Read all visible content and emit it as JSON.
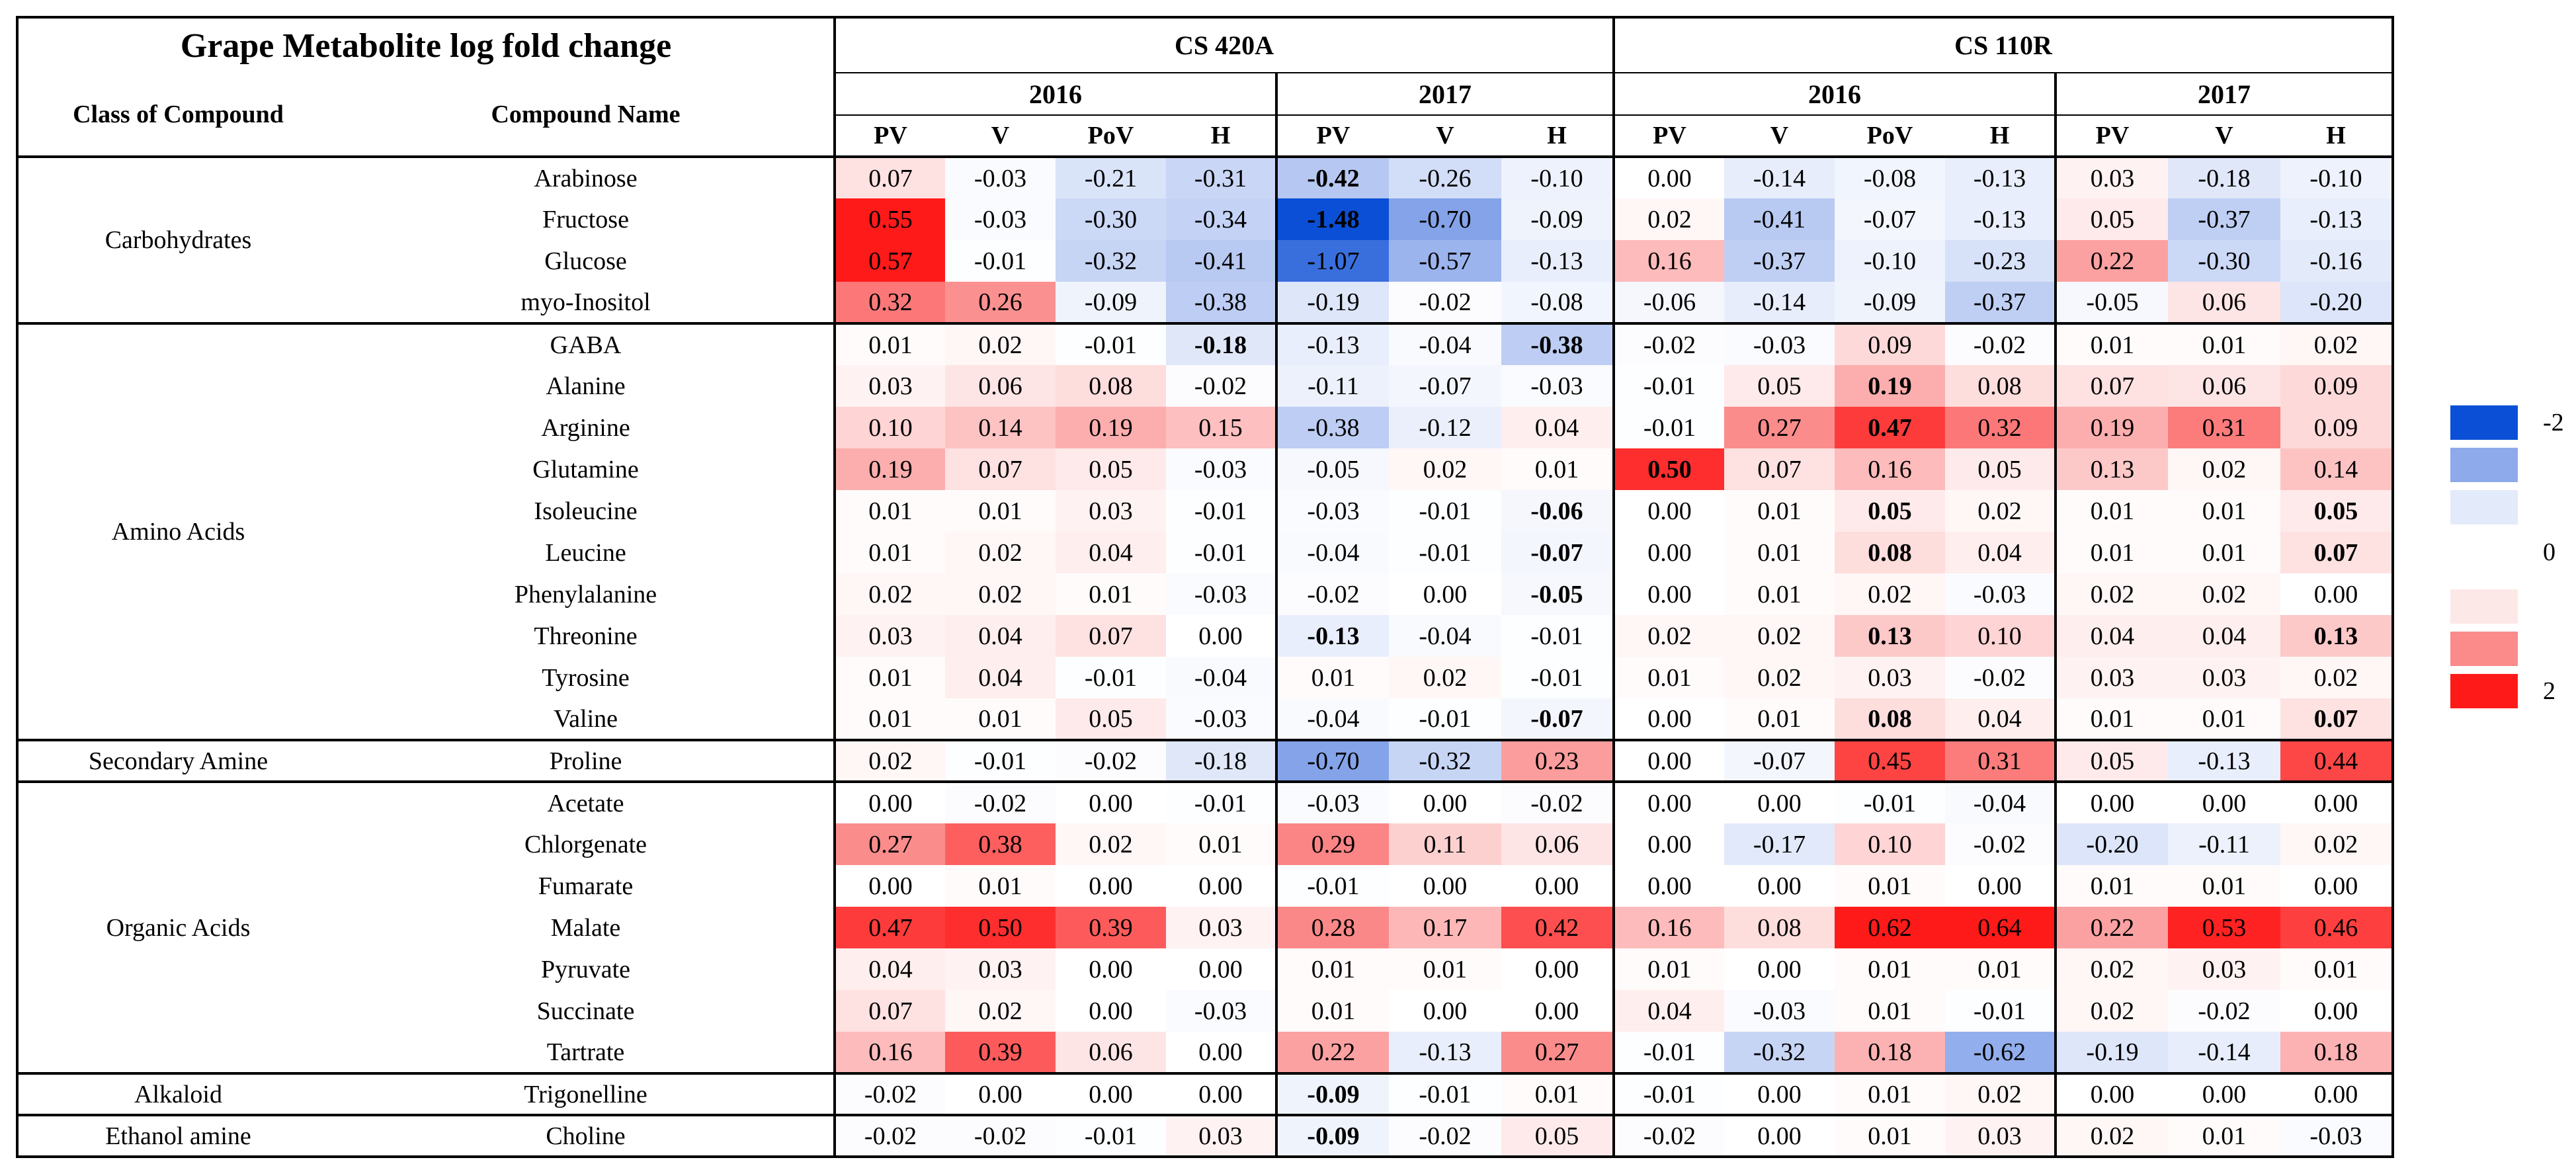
{
  "title": "Grape Metabolite log fold change",
  "headers": {
    "class_label": "Class of Compound",
    "compound_label": "Compound Name",
    "rootstocks": [
      "CS 420A",
      "CS 110R"
    ],
    "years": [
      "2016",
      "2017",
      "2016",
      "2017"
    ],
    "stages": [
      "PV",
      "V",
      "PoV",
      "H",
      "PV",
      "V",
      "H",
      "PV",
      "V",
      "PoV",
      "H",
      "PV",
      "V",
      "H"
    ]
  },
  "colors": {
    "neg_strong": "#0a4fd6",
    "neg_mid": "#8eaaeb",
    "neg_light": "#e3eaf9",
    "pos_light": "#fde8e8",
    "pos_mid": "#fb8a8a",
    "pos_strong": "#ff1a1a"
  },
  "groups": [
    {
      "class": "Carbohydrates",
      "rows": [
        {
          "name": "Arabinose",
          "values": [
            "0.07",
            "-0.03",
            "-0.21",
            "-0.31",
            "-0.42",
            "-0.26",
            "-0.10",
            "0.00",
            "-0.14",
            "-0.08",
            "-0.13",
            "0.03",
            "-0.18",
            "-0.10"
          ],
          "bold": [
            4
          ]
        },
        {
          "name": "Fructose",
          "values": [
            "0.55",
            "-0.03",
            "-0.30",
            "-0.34",
            "-1.48",
            "-0.70",
            "-0.09",
            "0.02",
            "-0.41",
            "-0.07",
            "-0.13",
            "0.05",
            "-0.37",
            "-0.13"
          ],
          "bold": [
            4
          ]
        },
        {
          "name": "Glucose",
          "values": [
            "0.57",
            "-0.01",
            "-0.32",
            "-0.41",
            "-1.07",
            "-0.57",
            "-0.13",
            "0.16",
            "-0.37",
            "-0.10",
            "-0.23",
            "0.22",
            "-0.30",
            "-0.16"
          ],
          "bold": []
        },
        {
          "name": "myo-Inositol",
          "values": [
            "0.32",
            "0.26",
            "-0.09",
            "-0.38",
            "-0.19",
            "-0.02",
            "-0.08",
            "-0.06",
            "-0.14",
            "-0.09",
            "-0.37",
            "-0.05",
            "0.06",
            "-0.20"
          ],
          "bold": []
        }
      ]
    },
    {
      "class": "Amino Acids",
      "rows": [
        {
          "name": "GABA",
          "values": [
            "0.01",
            "0.02",
            "-0.01",
            "-0.18",
            "-0.13",
            "-0.04",
            "-0.38",
            "-0.02",
            "-0.03",
            "0.09",
            "-0.02",
            "0.01",
            "0.01",
            "0.02"
          ],
          "bold": [
            3,
            6
          ]
        },
        {
          "name": "Alanine",
          "values": [
            "0.03",
            "0.06",
            "0.08",
            "-0.02",
            "-0.11",
            "-0.07",
            "-0.03",
            "-0.01",
            "0.05",
            "0.19",
            "0.08",
            "0.07",
            "0.06",
            "0.09"
          ],
          "bold": [
            9
          ]
        },
        {
          "name": "Arginine",
          "values": [
            "0.10",
            "0.14",
            "0.19",
            "0.15",
            "-0.38",
            "-0.12",
            "0.04",
            "-0.01",
            "0.27",
            "0.47",
            "0.32",
            "0.19",
            "0.31",
            "0.09"
          ],
          "bold": [
            9
          ]
        },
        {
          "name": "Glutamine",
          "values": [
            "0.19",
            "0.07",
            "0.05",
            "-0.03",
            "-0.05",
            "0.02",
            "0.01",
            "0.50",
            "0.07",
            "0.16",
            "0.05",
            "0.13",
            "0.02",
            "0.14"
          ],
          "bold": [
            7
          ]
        },
        {
          "name": "Isoleucine",
          "values": [
            "0.01",
            "0.01",
            "0.03",
            "-0.01",
            "-0.03",
            "-0.01",
            "-0.06",
            "0.00",
            "0.01",
            "0.05",
            "0.02",
            "0.01",
            "0.01",
            "0.05"
          ],
          "bold": [
            6,
            9,
            13
          ]
        },
        {
          "name": "Leucine",
          "values": [
            "0.01",
            "0.02",
            "0.04",
            "-0.01",
            "-0.04",
            "-0.01",
            "-0.07",
            "0.00",
            "0.01",
            "0.08",
            "0.04",
            "0.01",
            "0.01",
            "0.07"
          ],
          "bold": [
            6,
            9,
            13
          ]
        },
        {
          "name": "Phenylalanine",
          "values": [
            "0.02",
            "0.02",
            "0.01",
            "-0.03",
            "-0.02",
            "0.00",
            "-0.05",
            "0.00",
            "0.01",
            "0.02",
            "-0.03",
            "0.02",
            "0.02",
            "0.00"
          ],
          "bold": [
            6
          ]
        },
        {
          "name": "Threonine",
          "values": [
            "0.03",
            "0.04",
            "0.07",
            "0.00",
            "-0.13",
            "-0.04",
            "-0.01",
            "0.02",
            "0.02",
            "0.13",
            "0.10",
            "0.04",
            "0.04",
            "0.13"
          ],
          "bold": [
            4,
            9,
            13
          ]
        },
        {
          "name": "Tyrosine",
          "values": [
            "0.01",
            "0.04",
            "-0.01",
            "-0.04",
            "0.01",
            "0.02",
            "-0.01",
            "0.01",
            "0.02",
            "0.03",
            "-0.02",
            "0.03",
            "0.03",
            "0.02"
          ],
          "bold": []
        },
        {
          "name": "Valine",
          "values": [
            "0.01",
            "0.01",
            "0.05",
            "-0.03",
            "-0.04",
            "-0.01",
            "-0.07",
            "0.00",
            "0.01",
            "0.08",
            "0.04",
            "0.01",
            "0.01",
            "0.07"
          ],
          "bold": [
            6,
            9,
            13
          ]
        }
      ]
    },
    {
      "class": "Secondary Amine",
      "rows": [
        {
          "name": "Proline",
          "values": [
            "0.02",
            "-0.01",
            "-0.02",
            "-0.18",
            "-0.70",
            "-0.32",
            "0.23",
            "0.00",
            "-0.07",
            "0.45",
            "0.31",
            "0.05",
            "-0.13",
            "0.44"
          ],
          "bold": []
        }
      ]
    },
    {
      "class": "Organic Acids",
      "rows": [
        {
          "name": "Acetate",
          "values": [
            "0.00",
            "-0.02",
            "0.00",
            "-0.01",
            "-0.03",
            "0.00",
            "-0.02",
            "0.00",
            "0.00",
            "-0.01",
            "-0.04",
            "0.00",
            "0.00",
            "0.00"
          ],
          "bold": []
        },
        {
          "name": "Chlorgenate",
          "values": [
            "0.27",
            "0.38",
            "0.02",
            "0.01",
            "0.29",
            "0.11",
            "0.06",
            "0.00",
            "-0.17",
            "0.10",
            "-0.02",
            "-0.20",
            "-0.11",
            "0.02"
          ],
          "bold": []
        },
        {
          "name": "Fumarate",
          "values": [
            "0.00",
            "0.01",
            "0.00",
            "0.00",
            "-0.01",
            "0.00",
            "0.00",
            "0.00",
            "0.00",
            "0.01",
            "0.00",
            "0.01",
            "0.01",
            "0.00"
          ],
          "bold": []
        },
        {
          "name": "Malate",
          "values": [
            "0.47",
            "0.50",
            "0.39",
            "0.03",
            "0.28",
            "0.17",
            "0.42",
            "0.16",
            "0.08",
            "0.62",
            "0.64",
            "0.22",
            "0.53",
            "0.46"
          ],
          "bold": []
        },
        {
          "name": "Pyruvate",
          "values": [
            "0.04",
            "0.03",
            "0.00",
            "0.00",
            "0.01",
            "0.01",
            "0.00",
            "0.01",
            "0.00",
            "0.01",
            "0.01",
            "0.02",
            "0.03",
            "0.01"
          ],
          "bold": []
        },
        {
          "name": "Succinate",
          "values": [
            "0.07",
            "0.02",
            "0.00",
            "-0.03",
            "0.01",
            "0.00",
            "0.00",
            "0.04",
            "-0.03",
            "0.01",
            "-0.01",
            "0.02",
            "-0.02",
            "0.00"
          ],
          "bold": []
        },
        {
          "name": "Tartrate",
          "values": [
            "0.16",
            "0.39",
            "0.06",
            "0.00",
            "0.22",
            "-0.13",
            "0.27",
            "-0.01",
            "-0.32",
            "0.18",
            "-0.62",
            "-0.19",
            "-0.14",
            "0.18"
          ],
          "bold": []
        }
      ]
    },
    {
      "class": "Alkaloid",
      "rows": [
        {
          "name": "Trigonelline",
          "values": [
            "-0.02",
            "0.00",
            "0.00",
            "0.00",
            "-0.09",
            "-0.01",
            "0.01",
            "-0.01",
            "0.00",
            "0.01",
            "0.02",
            "0.00",
            "0.00",
            "0.00"
          ],
          "bold": [
            4
          ]
        }
      ]
    },
    {
      "class": "Ethanol amine",
      "rows": [
        {
          "name": "Choline",
          "values": [
            "-0.02",
            "-0.02",
            "-0.01",
            "0.03",
            "-0.09",
            "-0.02",
            "0.05",
            "-0.02",
            "0.00",
            "0.01",
            "0.03",
            "0.02",
            "0.01",
            "-0.03"
          ],
          "bold": [
            4
          ]
        }
      ]
    }
  ],
  "legend": {
    "labels": [
      "-2",
      "0",
      "2"
    ],
    "swatches": [
      "#0a4fd6",
      "#8eaaeb",
      "#e3eaf9",
      "#fde8e8",
      "#fb8a8a",
      "#ff1a1a"
    ]
  }
}
